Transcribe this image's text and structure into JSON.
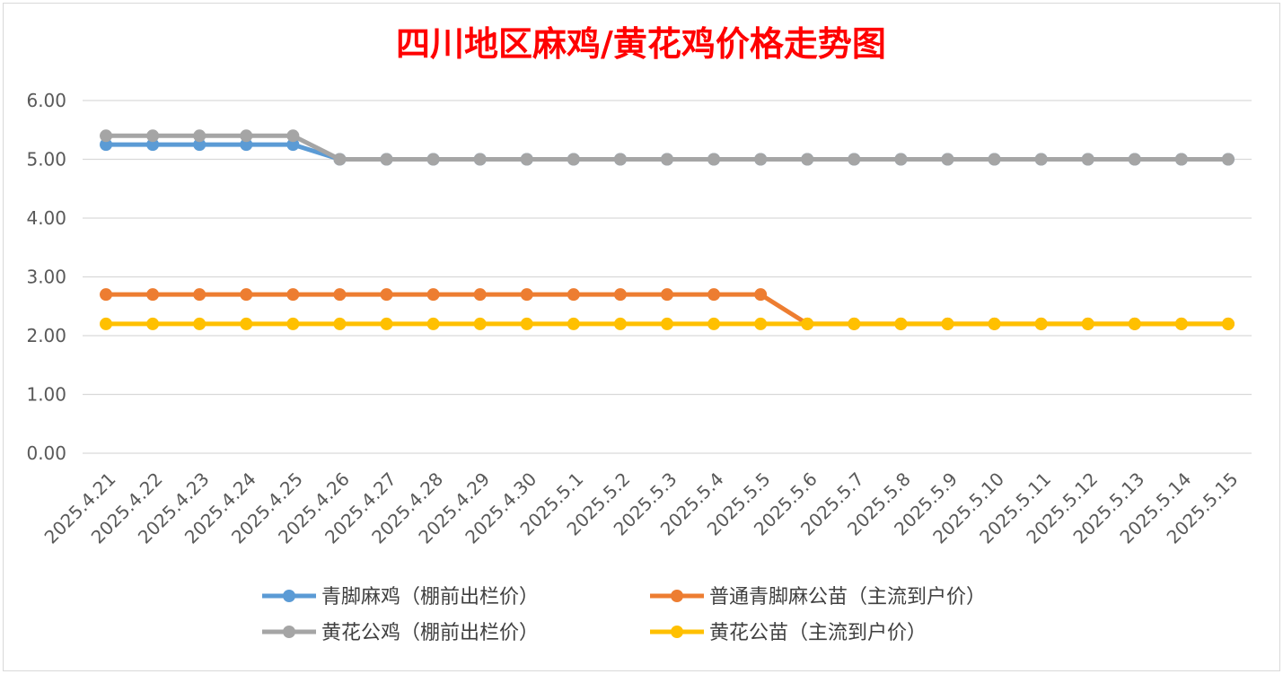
{
  "chart_data": {
    "type": "line",
    "title": "四川地区麻鸡/黄花鸡价格走势图",
    "xlabel": "",
    "ylabel": "",
    "ylim": [
      0,
      6
    ],
    "yticks": [
      "0.00",
      "1.00",
      "2.00",
      "3.00",
      "4.00",
      "5.00",
      "6.00"
    ],
    "grid": true,
    "legend_position": "bottom",
    "categories": [
      "2025.4.21",
      "2025.4.22",
      "2025.4.23",
      "2025.4.24",
      "2025.4.25",
      "2025.4.26",
      "2025.4.27",
      "2025.4.28",
      "2025.4.29",
      "2025.4.30",
      "2025.5.1",
      "2025.5.2",
      "2025.5.3",
      "2025.5.4",
      "2025.5.5",
      "2025.5.6",
      "2025.5.7",
      "2025.5.8",
      "2025.5.9",
      "2025.5.10",
      "2025.5.11",
      "2025.5.12",
      "2025.5.13",
      "2025.5.14",
      "2025.5.15"
    ],
    "series": [
      {
        "name": "青脚麻鸡（棚前出栏价）",
        "color": "#5b9bd5",
        "values": [
          5.25,
          5.25,
          5.25,
          5.25,
          5.25,
          5.0,
          5.0,
          5.0,
          5.0,
          5.0,
          5.0,
          5.0,
          5.0,
          5.0,
          5.0,
          5.0,
          5.0,
          5.0,
          5.0,
          5.0,
          5.0,
          5.0,
          5.0,
          5.0,
          5.0
        ]
      },
      {
        "name": "普通青脚麻公苗（主流到户价）",
        "color": "#ed7d31",
        "values": [
          2.7,
          2.7,
          2.7,
          2.7,
          2.7,
          2.7,
          2.7,
          2.7,
          2.7,
          2.7,
          2.7,
          2.7,
          2.7,
          2.7,
          2.7,
          2.2,
          2.2,
          2.2,
          2.2,
          2.2,
          2.2,
          2.2,
          2.2,
          2.2,
          2.2
        ]
      },
      {
        "name": "黄花公鸡（棚前出栏价）",
        "color": "#a5a5a5",
        "values": [
          5.4,
          5.4,
          5.4,
          5.4,
          5.4,
          5.0,
          5.0,
          5.0,
          5.0,
          5.0,
          5.0,
          5.0,
          5.0,
          5.0,
          5.0,
          5.0,
          5.0,
          5.0,
          5.0,
          5.0,
          5.0,
          5.0,
          5.0,
          5.0,
          5.0
        ]
      },
      {
        "name": "黄花公苗（主流到户价）",
        "color": "#ffc000",
        "values": [
          2.2,
          2.2,
          2.2,
          2.2,
          2.2,
          2.2,
          2.2,
          2.2,
          2.2,
          2.2,
          2.2,
          2.2,
          2.2,
          2.2,
          2.2,
          2.2,
          2.2,
          2.2,
          2.2,
          2.2,
          2.2,
          2.2,
          2.2,
          2.2,
          2.2
        ]
      }
    ],
    "draw_order": [
      0,
      2,
      1,
      3
    ],
    "title_color": "#ff0000"
  }
}
